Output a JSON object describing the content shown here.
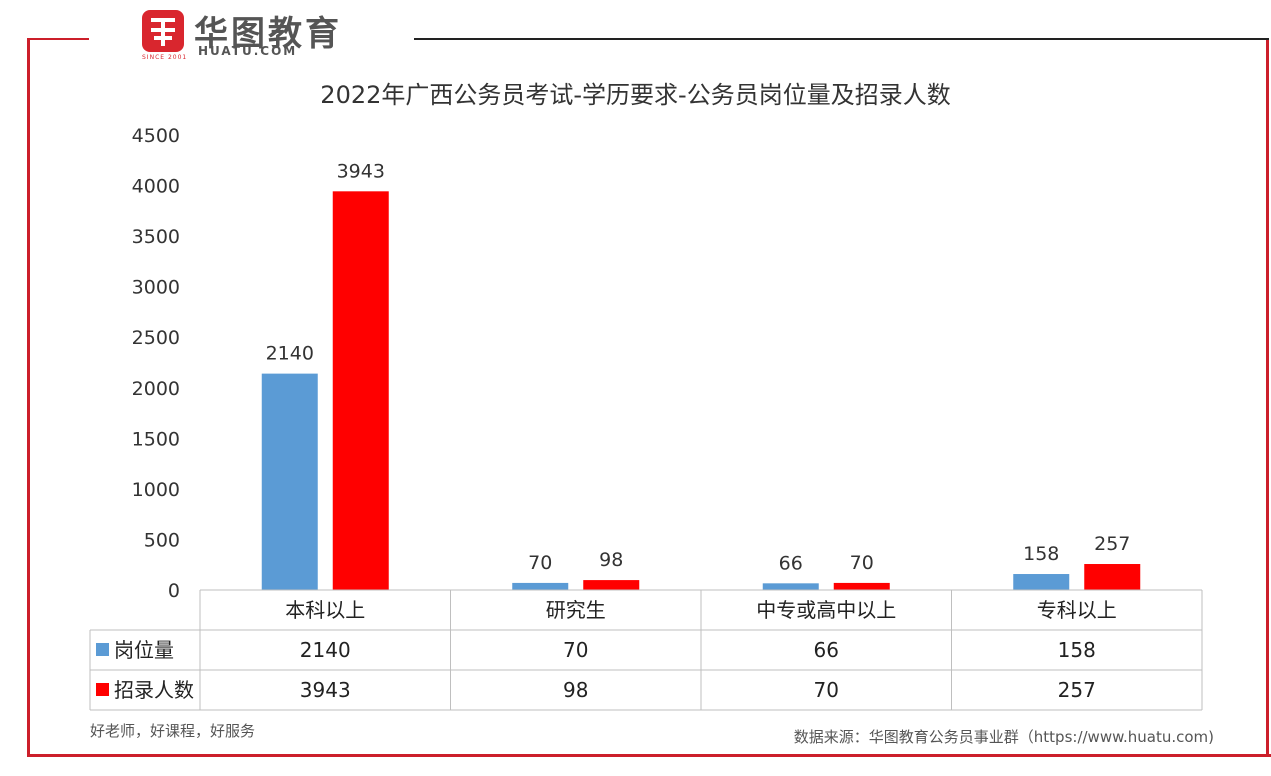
{
  "logo": {
    "brand": "华图教育",
    "sub": "HUATU.COM",
    "since": "SINCE 2001"
  },
  "footer": {
    "left": "好老师，好课程，好服务",
    "right": "数据来源：华图教育公务员事业群（https://www.huatu.com)"
  },
  "colors": {
    "frame": "#cc1f2a",
    "series_blue": "#5b9bd5",
    "series_red": "#ff0000"
  },
  "chart_data": {
    "type": "bar",
    "title": "2022年广西公务员考试-学历要求-公务员岗位量及招录人数",
    "xlabel": "",
    "ylabel": "",
    "ylim": [
      0,
      4500
    ],
    "yticks": [
      "4500",
      "4000",
      "3500",
      "3000",
      "2500",
      "2000",
      "1500",
      "1000",
      "500",
      "0"
    ],
    "categories": [
      "本科以上",
      "研究生",
      "中专或高中以上",
      "专科以上"
    ],
    "series": [
      {
        "name": "岗位量",
        "color": "#5b9bd5",
        "values": [
          2140,
          70,
          66,
          158
        ]
      },
      {
        "name": "招录人数",
        "color": "#ff0000",
        "values": [
          3943,
          98,
          70,
          257
        ]
      }
    ],
    "data_table": true,
    "grid": false,
    "legend": "data-table"
  }
}
